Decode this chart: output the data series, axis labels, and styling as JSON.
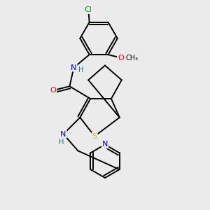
{
  "background_color": "#ebebeb",
  "atom_colors": {
    "C": "#000000",
    "N": "#0000ff",
    "O": "#ff0000",
    "S": "#cccc00",
    "Cl": "#00aa00",
    "H": "#008080"
  }
}
